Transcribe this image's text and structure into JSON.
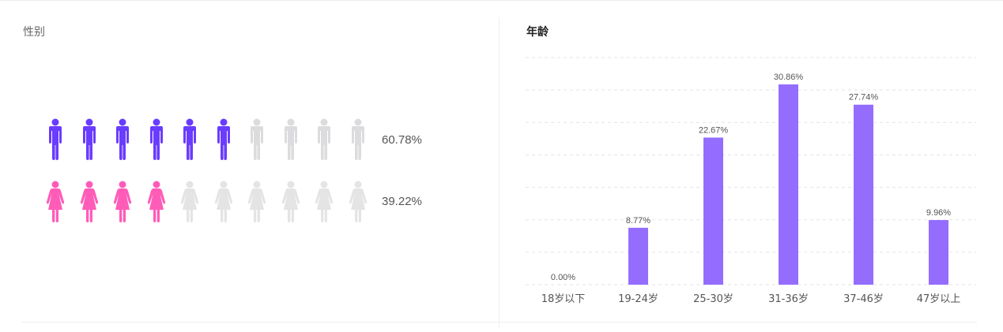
{
  "gender": {
    "title": "性别",
    "rows": [
      {
        "name": "male",
        "percent_label": "60.78%",
        "filled_icons": 6,
        "total_icons": 10,
        "color": "#6a3cff",
        "empty_color": "#dcdcdf"
      },
      {
        "name": "female",
        "percent_label": "39.22%",
        "filled_icons": 4,
        "total_icons": 10,
        "color": "#ff5cb8",
        "empty_color": "#e4e4e4"
      }
    ]
  },
  "age": {
    "title": "年龄"
  },
  "chart_data": {
    "type": "bar",
    "title": "年龄",
    "categories": [
      "18岁以下",
      "19-24岁",
      "25-30岁",
      "31-36岁",
      "37-46岁",
      "47岁以上"
    ],
    "values": [
      0.0,
      8.77,
      22.67,
      30.86,
      27.74,
      9.96
    ],
    "data_labels": [
      "0.00%",
      "8.77%",
      "22.67%",
      "30.86%",
      "27.74%",
      "9.96%"
    ],
    "ylim": [
      0,
      35
    ],
    "grid_step": 5,
    "grid": true,
    "bar_color": "#946dff"
  }
}
